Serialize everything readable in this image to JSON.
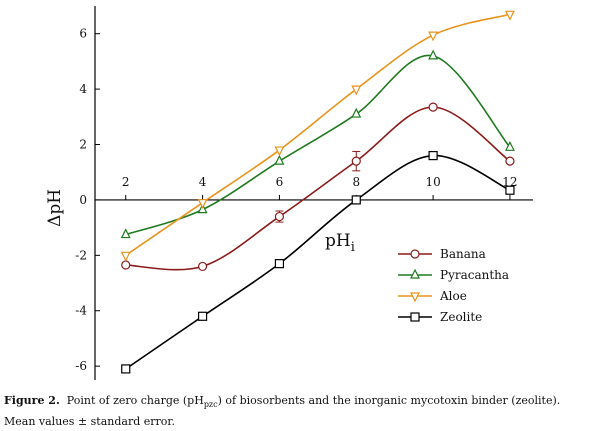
{
  "chart_data": {
    "type": "line",
    "xlabel": "pH",
    "xlabel_subscript": "i",
    "ylabel": "ΔpH",
    "xlim": [
      1.2,
      12.6
    ],
    "ylim": [
      -6.5,
      7.0
    ],
    "x_ticks": [
      2,
      4,
      6,
      8,
      10,
      12
    ],
    "y_ticks": [
      -6,
      -4,
      -2,
      0,
      2,
      4,
      6
    ],
    "x_tick_labels": [
      "2",
      "4",
      "6",
      "8",
      "10",
      "12"
    ],
    "y_tick_labels": [
      "-6",
      "-4",
      "-2",
      "0",
      "2",
      "4",
      "6"
    ],
    "legend_position": "right",
    "series": [
      {
        "name": "Banana",
        "color": "#8b1a1a",
        "marker": "circle",
        "x": [
          2,
          4,
          6,
          8,
          10,
          12
        ],
        "y": [
          -2.35,
          -2.4,
          -0.6,
          1.4,
          3.35,
          1.4
        ],
        "err": [
          0,
          0,
          0.2,
          0.35,
          0,
          0
        ]
      },
      {
        "name": "Pyracantha",
        "color": "#1f7a1f",
        "marker": "triangle-up",
        "x": [
          2,
          4,
          6,
          8,
          10,
          12
        ],
        "y": [
          -1.25,
          -0.35,
          1.4,
          3.1,
          5.2,
          1.9
        ],
        "err": [
          0,
          0,
          0,
          0,
          0,
          0
        ]
      },
      {
        "name": "Aloe",
        "color": "#e8931c",
        "marker": "triangle-down",
        "x": [
          2,
          4,
          6,
          8,
          10,
          12
        ],
        "y": [
          -2.0,
          -0.1,
          1.8,
          4.0,
          5.95,
          6.7
        ],
        "err": [
          0,
          0,
          0,
          0,
          0,
          0
        ]
      },
      {
        "name": "Zeolite",
        "color": "#000000",
        "marker": "square",
        "x": [
          2,
          4,
          6,
          8,
          10,
          12
        ],
        "y": [
          -6.1,
          -4.2,
          -2.3,
          0.0,
          1.6,
          0.35
        ],
        "err": [
          0,
          0,
          0,
          0,
          0,
          0
        ]
      }
    ]
  },
  "caption": {
    "label": "Figure 2.",
    "text_1": "Point of zero charge (pH",
    "sub": "pzc",
    "text_2": ") of biosorbents and the inorganic mycotoxin binder (zeolite).",
    "line2": "Mean values ± standard error."
  }
}
